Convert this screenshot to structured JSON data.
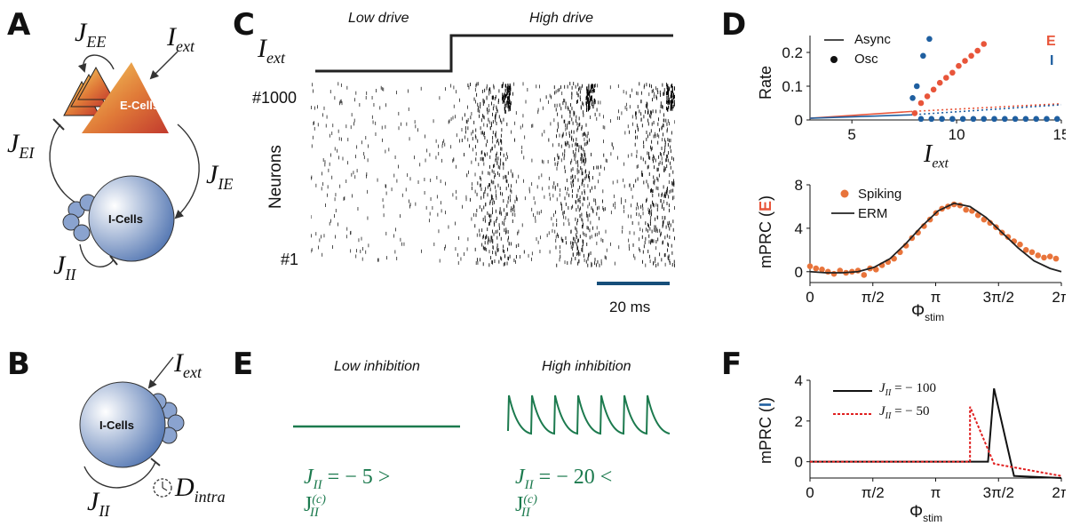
{
  "panels": {
    "A": {
      "label": "A",
      "J_EE": "J",
      "J_EE_sub": "EE",
      "I_ext": "I",
      "I_ext_sub": "ext",
      "E_cells": "E-Cells",
      "J_EI": "J",
      "J_EI_sub": "EI",
      "J_IE": "J",
      "J_IE_sub": "IE",
      "I_cells": "I-Cells",
      "J_II": "J",
      "J_II_sub": "II"
    },
    "B": {
      "label": "B",
      "I_ext": "I",
      "I_ext_sub": "ext",
      "I_cells": "I-Cells",
      "J_II": "J",
      "J_II_sub": "II",
      "D_intra": "D",
      "D_intra_sub": "intra"
    },
    "C": {
      "label": "C",
      "low_drive": "Low drive",
      "high_drive": "High drive",
      "I_ext": "I",
      "I_ext_sub": "ext",
      "top_neuron": "#1000",
      "bottom_neuron": "#1",
      "neurons_label": "Neurons",
      "scale_bar": "20 ms"
    },
    "D": {
      "label": "D",
      "top": {
        "ylabel": "Rate",
        "xlabel": "I",
        "xlabel_sub": "ext",
        "legend_async": "Async",
        "legend_osc": "Osc",
        "legend_E": "E",
        "legend_I": "I",
        "yticks": [
          "0",
          "0.1",
          "0.2"
        ],
        "xticks": [
          "5",
          "10",
          "15"
        ]
      },
      "bottom": {
        "ylabel": "mPRC (",
        "ylabel_mark": "E",
        "ylabel_end": ")",
        "legend_spiking": "Spiking",
        "legend_erm": "ERM",
        "yticks": [
          "0",
          "4",
          "8"
        ],
        "xticks": [
          "0",
          "π/2",
          "π",
          "3π/2",
          "2π"
        ],
        "xlabel": "Φ",
        "xlabel_sub": "stim"
      }
    },
    "E": {
      "label": "E",
      "low_inhib": "Low inhibition",
      "high_inhib": "High inhibition",
      "eq_low": "J",
      "eq_low_sub": "II",
      "eq_low_rest": " = − 5 > J",
      "eq_low_sup": "(c)",
      "eq_low_sub2": "II",
      "eq_high": "J",
      "eq_high_sub": "II",
      "eq_high_rest": " = − 20 < J",
      "eq_high_sup": "(c)",
      "eq_high_sub2": "II"
    },
    "F": {
      "label": "F",
      "ylabel": "mPRC (",
      "ylabel_mark": "I",
      "ylabel_end": ")",
      "legend_1": "J",
      "legend_1_sub": "II",
      "legend_1_rest": " = − 100",
      "legend_2": "J",
      "legend_2_sub": "II",
      "legend_2_rest": " = − 50",
      "yticks": [
        "0",
        "2",
        "4"
      ],
      "xticks": [
        "0",
        "π/2",
        "π",
        "3π/2",
        "2π"
      ],
      "xlabel": "Φ",
      "xlabel_sub": "stim"
    }
  },
  "colors": {
    "E": "#e8553a",
    "I": "#1f5fa0",
    "spiking": "#e8743b",
    "green": "#1c7a4e",
    "red_dotted": "#e02020",
    "scalebar": "#164e7a"
  },
  "chart_data": [
    {
      "type": "line",
      "panel": "D-top",
      "xlabel": "Iext",
      "ylabel": "Rate",
      "xlim": [
        3,
        15
      ],
      "ylim": [
        0,
        0.25
      ],
      "series": [
        {
          "name": "E",
          "kind": "async",
          "x": [
            3,
            7.8
          ],
          "y": [
            0.005,
            0.025
          ]
        },
        {
          "name": "E",
          "kind": "async-dotted",
          "x": [
            7.8,
            15
          ],
          "y": [
            0.025,
            0.048
          ]
        },
        {
          "name": "I",
          "kind": "async",
          "x": [
            3,
            7.8
          ],
          "y": [
            0.005,
            0.015
          ]
        },
        {
          "name": "I",
          "kind": "async-dotted",
          "x": [
            7.8,
            15
          ],
          "y": [
            0.015,
            0.045
          ]
        },
        {
          "name": "E",
          "kind": "osc",
          "x": [
            8.0,
            8.3,
            8.6,
            8.9,
            9.2,
            9.5,
            9.8,
            10.1,
            10.4,
            10.7,
            11.0,
            11.3
          ],
          "y": [
            0.02,
            0.05,
            0.07,
            0.09,
            0.11,
            0.125,
            0.14,
            0.16,
            0.175,
            0.19,
            0.205,
            0.225
          ]
        },
        {
          "name": "I",
          "kind": "osc",
          "x": [
            7.9,
            8.1,
            8.4,
            8.7
          ],
          "y": [
            0.065,
            0.1,
            0.19,
            0.24
          ]
        },
        {
          "name": "I",
          "kind": "osc-flat",
          "x": [
            8.3,
            8.8,
            9.3,
            9.8,
            10.3,
            10.8,
            11.3,
            11.8,
            12.3,
            12.8,
            13.3,
            13.8,
            14.3,
            14.8
          ],
          "y": [
            0.003,
            0.003,
            0.003,
            0.003,
            0.003,
            0.003,
            0.003,
            0.003,
            0.003,
            0.003,
            0.003,
            0.003,
            0.003,
            0.003
          ]
        }
      ]
    },
    {
      "type": "scatter",
      "panel": "D-bottom",
      "xlabel": "Φstim",
      "ylabel": "mPRC (E)",
      "xlim": [
        0,
        6.283
      ],
      "ylim": [
        -1,
        8
      ],
      "series": [
        {
          "name": "Spiking",
          "x": [
            0.0,
            0.15,
            0.3,
            0.45,
            0.6,
            0.75,
            0.9,
            1.05,
            1.2,
            1.35,
            1.5,
            1.65,
            1.8,
            1.95,
            2.1,
            2.25,
            2.4,
            2.55,
            2.7,
            2.85,
            3.0,
            3.15,
            3.3,
            3.45,
            3.6,
            3.75,
            3.9,
            4.05,
            4.2,
            4.35,
            4.5,
            4.65,
            4.8,
            4.95,
            5.1,
            5.25,
            5.4,
            5.55,
            5.7,
            5.85,
            6.0,
            6.15
          ],
          "y": [
            0.5,
            0.3,
            0.2,
            0.0,
            -0.2,
            0.1,
            -0.1,
            0.0,
            0.1,
            -0.3,
            0.3,
            0.2,
            0.6,
            0.9,
            1.2,
            1.8,
            2.4,
            3.1,
            3.6,
            4.2,
            4.8,
            5.4,
            5.8,
            6.0,
            6.2,
            6.1,
            5.7,
            5.6,
            5.2,
            4.8,
            4.5,
            4.1,
            3.6,
            3.2,
            2.8,
            2.5,
            2.0,
            1.8,
            1.5,
            1.3,
            1.4,
            1.2
          ]
        },
        {
          "name": "ERM",
          "x": [
            0,
            0.4,
            0.8,
            1.2,
            1.6,
            2.0,
            2.4,
            2.8,
            3.2,
            3.6,
            4.0,
            4.4,
            4.8,
            5.2,
            5.6,
            6.0,
            6.283
          ],
          "y": [
            0.0,
            -0.1,
            -0.1,
            0.0,
            0.4,
            1.2,
            2.6,
            4.2,
            5.6,
            6.3,
            6.0,
            5.0,
            3.6,
            2.2,
            1.0,
            0.3,
            0.0
          ]
        }
      ]
    },
    {
      "type": "line",
      "panel": "F",
      "xlabel": "Φstim",
      "ylabel": "mPRC (I)",
      "xlim": [
        0,
        6.283
      ],
      "ylim": [
        -0.8,
        4
      ],
      "series": [
        {
          "name": "JII = −100",
          "x": [
            0,
            4.45,
            4.6,
            5.1,
            6.283
          ],
          "y": [
            0,
            0,
            3.6,
            -0.7,
            -0.8
          ]
        },
        {
          "name": "JII = −50",
          "x": [
            0,
            4.0,
            4.0,
            4.6,
            6.283
          ],
          "y": [
            0,
            0,
            2.7,
            -0.1,
            -0.7
          ]
        }
      ]
    }
  ]
}
